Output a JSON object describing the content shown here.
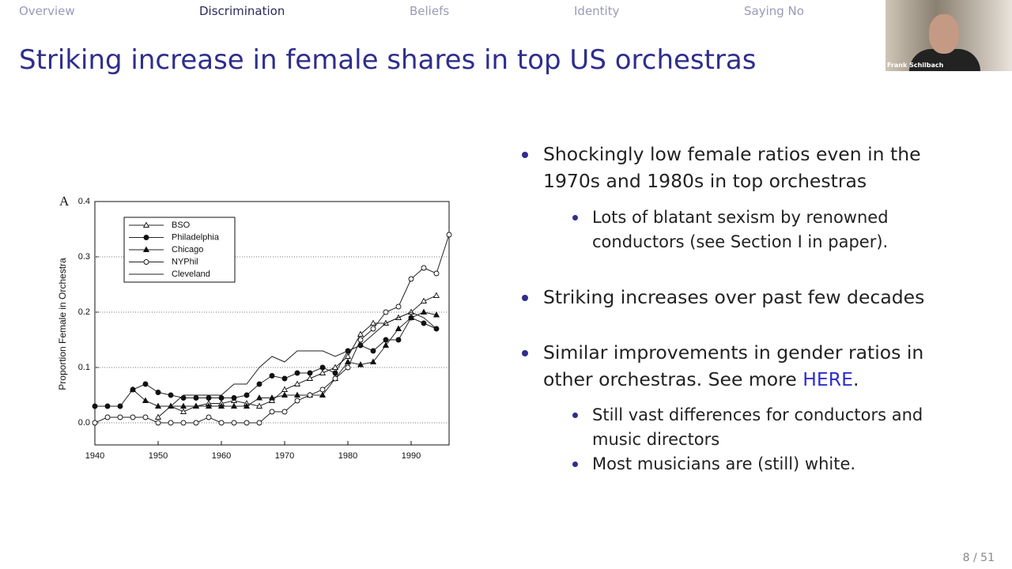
{
  "nav": [
    "Overview",
    "Discrimination",
    "Beliefs",
    "Identity",
    "Saying No"
  ],
  "title": "Striking increase in female shares in top US orchestras",
  "bullets": [
    {
      "text": "Shockingly low female ratios even in the 1970s and 1980s in top orchestras",
      "sub": [
        "Lots of blatant sexism by renowned conductors (see Section I in paper)."
      ]
    },
    {
      "text": "Striking increases over past few decades"
    },
    {
      "text": "Similar improvements in gender ratios in other orchestras. See more",
      "link": "HERE",
      "tail": ".",
      "sub": [
        "Still vast differences for conductors and music directors",
        "Most musicians are (still) white."
      ]
    }
  ],
  "speaker": "Frank Schilbach",
  "page": "8 / 51",
  "chart_data": {
    "type": "line",
    "panel": "A",
    "ylabel": "Proportion Female in Orchestra",
    "x": [
      1940,
      1942,
      1944,
      1946,
      1948,
      1950,
      1952,
      1954,
      1956,
      1958,
      1960,
      1962,
      1964,
      1966,
      1968,
      1970,
      1972,
      1974,
      1976,
      1978,
      1980,
      1982,
      1984,
      1986,
      1988,
      1990,
      1992,
      1994,
      1996
    ],
    "series": [
      {
        "name": "BSO",
        "color": "#222",
        "marker": "open-triangle",
        "values": [
          null,
          null,
          null,
          null,
          null,
          0.01,
          0.03,
          0.02,
          0.03,
          0.035,
          0.035,
          0.04,
          0.035,
          0.03,
          0.04,
          0.06,
          0.07,
          0.08,
          0.09,
          0.1,
          0.12,
          0.16,
          0.18,
          0.18,
          0.19,
          0.2,
          0.22,
          0.23,
          null
        ]
      },
      {
        "name": "Philadelphia",
        "color": "#222",
        "marker": "filled-circle",
        "values": [
          0.03,
          0.03,
          0.03,
          0.06,
          0.07,
          0.055,
          0.05,
          0.045,
          0.045,
          0.045,
          0.045,
          0.045,
          0.05,
          0.07,
          0.085,
          0.08,
          0.09,
          0.09,
          0.1,
          0.09,
          0.13,
          0.14,
          0.13,
          0.15,
          0.15,
          0.19,
          0.18,
          0.17,
          null
        ]
      },
      {
        "name": "Chicago",
        "color": "#222",
        "marker": "filled-triangle",
        "values": [
          null,
          null,
          null,
          0.06,
          0.04,
          0.03,
          0.03,
          0.03,
          0.03,
          0.03,
          0.03,
          0.03,
          0.03,
          0.045,
          0.045,
          0.05,
          0.05,
          0.05,
          0.05,
          0.08,
          0.11,
          0.105,
          0.11,
          0.14,
          0.17,
          0.19,
          0.2,
          0.195,
          null
        ]
      },
      {
        "name": "NYPhil",
        "color": "#222",
        "marker": "open-circle",
        "values": [
          0.0,
          0.01,
          0.01,
          0.01,
          0.01,
          0.0,
          0.0,
          0.0,
          0.0,
          0.01,
          0.0,
          0.0,
          0.0,
          0.0,
          0.02,
          0.02,
          0.04,
          0.05,
          0.06,
          0.08,
          0.1,
          0.15,
          0.17,
          0.2,
          0.21,
          0.26,
          0.28,
          0.27,
          0.34
        ]
      },
      {
        "name": "Cleveland",
        "color": "#222",
        "marker": "none",
        "values": [
          null,
          null,
          null,
          null,
          null,
          null,
          0.03,
          0.05,
          0.05,
          0.05,
          0.05,
          0.07,
          0.07,
          0.1,
          0.12,
          0.11,
          0.13,
          0.13,
          0.13,
          0.12,
          0.13,
          0.14,
          0.16,
          0.18,
          0.19,
          0.2,
          0.19,
          0.17,
          null
        ]
      }
    ],
    "xlim": [
      1940,
      1996
    ],
    "xticks": [
      1940,
      1950,
      1960,
      1970,
      1980,
      1990
    ],
    "ylim": [
      -0.04,
      0.4
    ],
    "yticks": [
      {
        "value": 0,
        "label": "0.0"
      },
      0.1,
      0.2,
      0.3,
      0.4
    ],
    "grid": true,
    "legend": "upper left"
  }
}
